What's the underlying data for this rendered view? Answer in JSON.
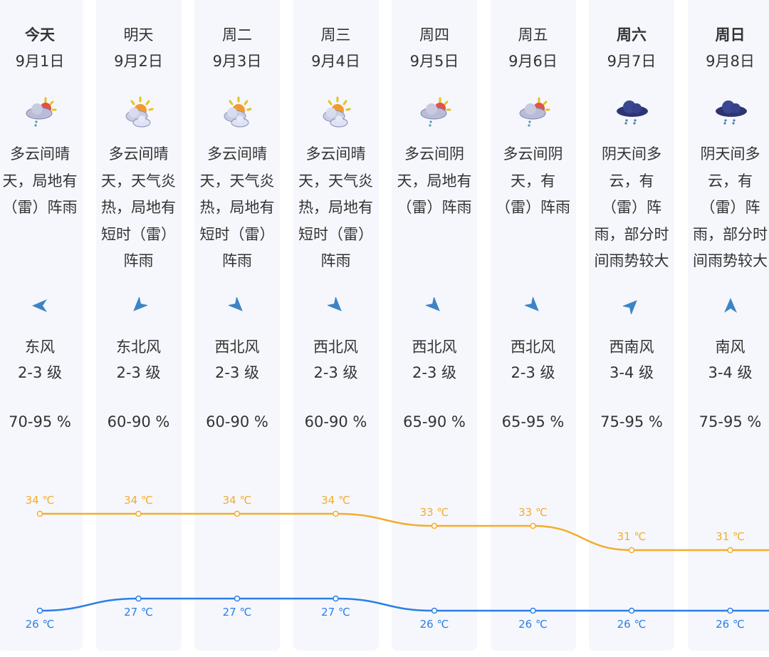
{
  "colors": {
    "high": "#f5ac2c",
    "low": "#2c7ee6",
    "card": "#f5f7fc",
    "arrow": "#3d84c6"
  },
  "unit": "℃",
  "days": [
    {
      "day": "今天",
      "bold": true,
      "date": "9月1日",
      "icon": "cloud-sun-rain-icon",
      "desc": [
        "多云间晴",
        "天，局地有",
        "（雷）阵雨"
      ],
      "wind": "东风",
      "wind_from_deg": 90,
      "level": "2-3 级",
      "humidity": "70-95 %",
      "high": 34,
      "low": 26
    },
    {
      "day": "明天",
      "bold": false,
      "date": "9月2日",
      "icon": "partly-cloudy-sun-icon",
      "desc": [
        "多云间晴",
        "天，天气炎",
        "热，局地有",
        "短时（雷）",
        "阵雨"
      ],
      "wind": "东北风",
      "wind_from_deg": 45,
      "level": "2-3 级",
      "humidity": "60-90 %",
      "high": 34,
      "low": 27
    },
    {
      "day": "周二",
      "bold": false,
      "date": "9月3日",
      "icon": "partly-cloudy-sun-icon",
      "desc": [
        "多云间晴",
        "天，天气炎",
        "热，局地有",
        "短时（雷）",
        "阵雨"
      ],
      "wind": "西北风",
      "wind_from_deg": 315,
      "level": "2-3 级",
      "humidity": "60-90 %",
      "high": 34,
      "low": 27
    },
    {
      "day": "周三",
      "bold": false,
      "date": "9月4日",
      "icon": "partly-cloudy-sun-icon",
      "desc": [
        "多云间晴",
        "天，天气炎",
        "热，局地有",
        "短时（雷）",
        "阵雨"
      ],
      "wind": "西北风",
      "wind_from_deg": 315,
      "level": "2-3 级",
      "humidity": "60-90 %",
      "high": 34,
      "low": 27
    },
    {
      "day": "周四",
      "bold": false,
      "date": "9月5日",
      "icon": "cloud-sun-rain-icon",
      "desc": [
        "多云间阴",
        "天，局地有",
        "（雷）阵雨"
      ],
      "wind": "西北风",
      "wind_from_deg": 315,
      "level": "2-3 级",
      "humidity": "65-90 %",
      "high": 33,
      "low": 26
    },
    {
      "day": "周五",
      "bold": false,
      "date": "9月6日",
      "icon": "cloud-sun-rain-icon",
      "desc": [
        "多云间阴",
        "天，有",
        "（雷）阵雨"
      ],
      "wind": "西北风",
      "wind_from_deg": 315,
      "level": "2-3 级",
      "humidity": "65-95 %",
      "high": 33,
      "low": 26
    },
    {
      "day": "周六",
      "bold": true,
      "date": "9月7日",
      "icon": "dark-cloud-rain-icon",
      "desc": [
        "阴天间多",
        "云，有",
        "（雷）阵",
        "雨，部分时",
        "间雨势较大"
      ],
      "wind": "西南风",
      "wind_from_deg": 225,
      "level": "3-4 级",
      "humidity": "75-95 %",
      "high": 31,
      "low": 26
    },
    {
      "day": "周日",
      "bold": true,
      "date": "9月8日",
      "icon": "dark-cloud-rain-icon",
      "desc": [
        "阴天间多",
        "云，有",
        "（雷）阵",
        "雨，部分时",
        "间雨势较大"
      ],
      "wind": "南风",
      "wind_from_deg": 180,
      "level": "3-4 级",
      "humidity": "75-95 %",
      "high": 31,
      "low": 26
    }
  ]
}
